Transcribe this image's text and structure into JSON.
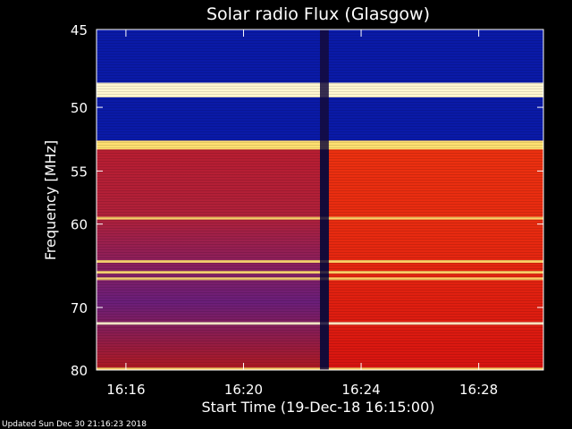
{
  "chart_data": {
    "type": "heatmap",
    "title": "Solar radio Flux (Glasgow)",
    "xlabel": "Start Time (19-Dec-18 16:15:00)",
    "ylabel": "Frequency [MHz]",
    "x_ticks": [
      {
        "label": "16:16",
        "minutes": 1
      },
      {
        "label": "16:20",
        "minutes": 5
      },
      {
        "label": "16:24",
        "minutes": 9
      },
      {
        "label": "16:28",
        "minutes": 13
      }
    ],
    "y_ticks": [
      45,
      50,
      55,
      60,
      70,
      80
    ],
    "xlim_minutes": [
      0,
      15.2
    ],
    "ylim_mhz": [
      45,
      80
    ],
    "y_scale": "reciprocal",
    "colors": {
      "low": "#0a1aa8",
      "mid": "#d81410",
      "high": "#ffe070",
      "peak": "#fff6d0",
      "gap": "#140a3a"
    },
    "segments": [
      {
        "from_minutes": 0,
        "to_minutes": 7.6,
        "state": "before"
      },
      {
        "from_minutes": 7.6,
        "to_minutes": 7.9,
        "state": "gap"
      },
      {
        "from_minutes": 7.9,
        "to_minutes": 15.2,
        "state": "after"
      }
    ],
    "bands": [
      {
        "from_mhz": 45,
        "to_mhz": 48.3,
        "level": "low"
      },
      {
        "from_mhz": 48.3,
        "to_mhz": 49.3,
        "level": "peak"
      },
      {
        "from_mhz": 49.3,
        "to_mhz": 52.5,
        "level": "low"
      },
      {
        "from_mhz": 52.5,
        "to_mhz": 53.2,
        "level": "high"
      },
      {
        "from_mhz": 53.2,
        "to_mhz": 80,
        "level": "mid"
      }
    ],
    "lines_mhz": [
      {
        "mhz": 59.4,
        "level": "high"
      },
      {
        "mhz": 64.1,
        "level": "high"
      },
      {
        "mhz": 65.4,
        "level": "high"
      },
      {
        "mhz": 66.2,
        "level": "high"
      },
      {
        "mhz": 72.3,
        "level": "peak"
      },
      {
        "mhz": 79.8,
        "level": "high"
      }
    ]
  },
  "footer": {
    "updated": "Updated Sun Dec 30 21:16:23 2018"
  }
}
